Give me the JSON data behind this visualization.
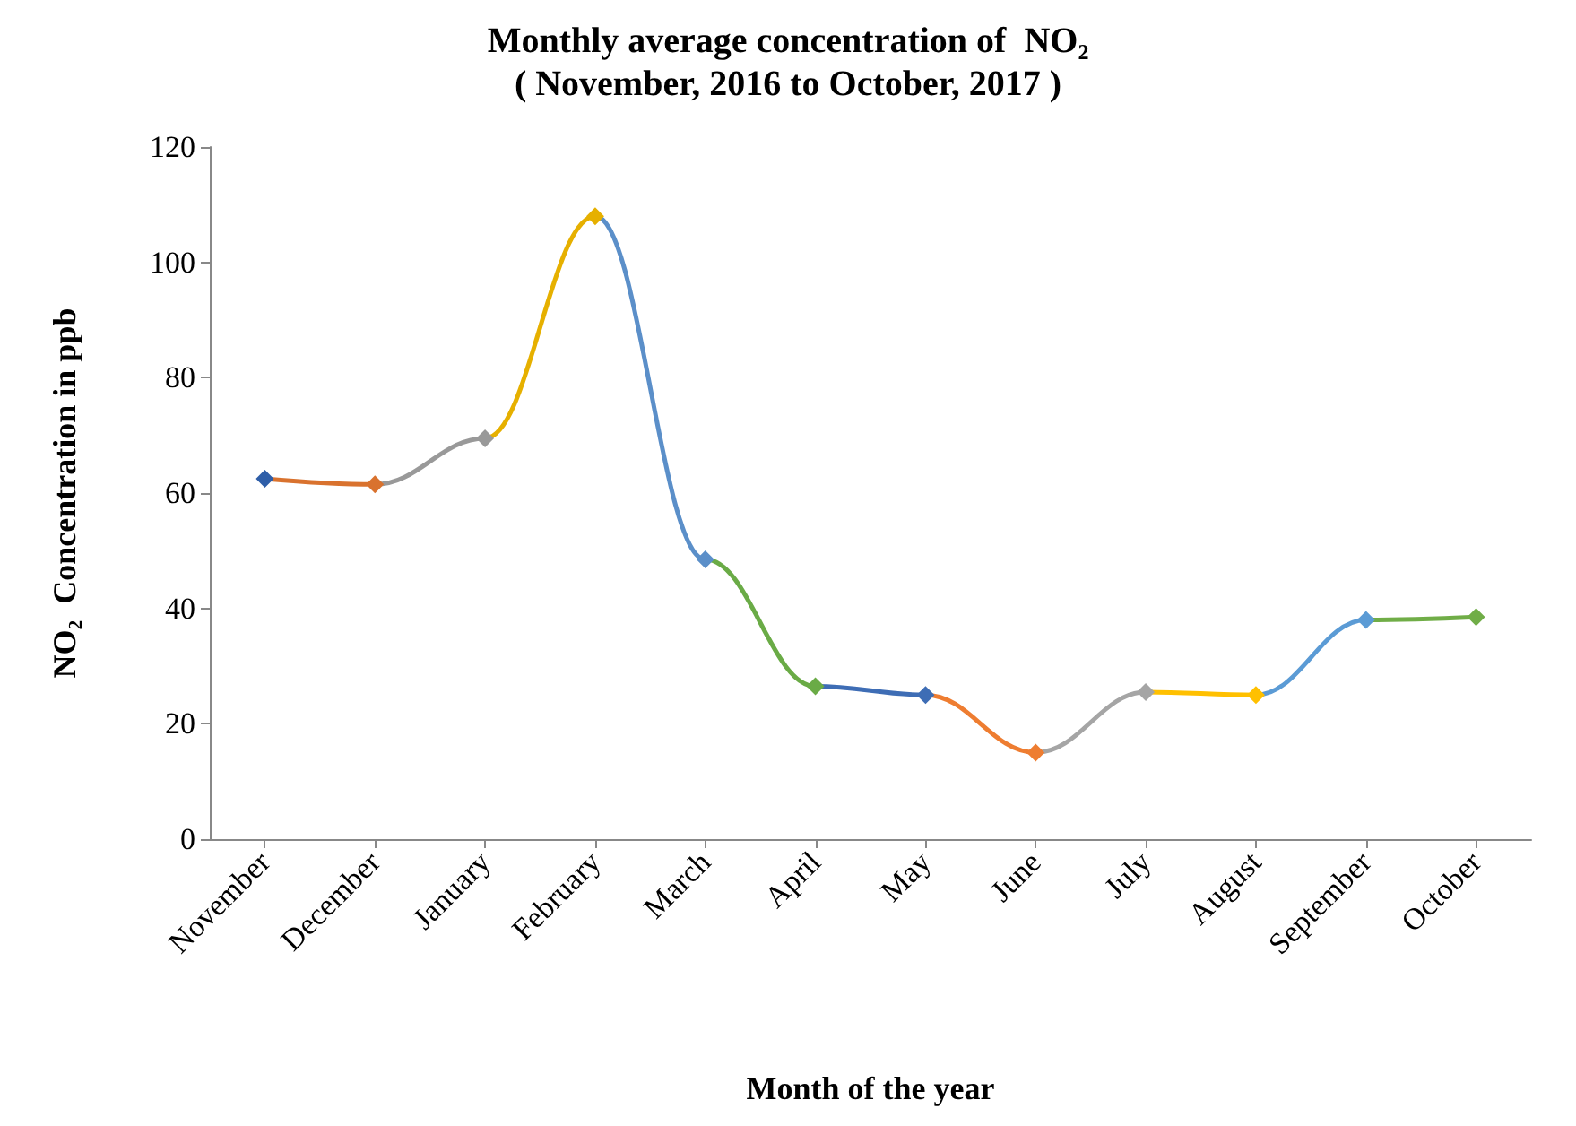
{
  "chart_data": {
    "type": "line",
    "title": "Monthly average concentration of  NO₂",
    "subtitle": "( November, 2016 to October, 2017 )",
    "xlabel": "Month of the year",
    "ylabel": "NO₂  Concentration in ppb",
    "categories": [
      "November",
      "December",
      "January",
      "February",
      "March",
      "April",
      "May",
      "June",
      "July",
      "August",
      "September",
      "October"
    ],
    "values": [
      62.5,
      61.5,
      69.5,
      108,
      48.5,
      26.5,
      25,
      15,
      25.5,
      25,
      38,
      38.5
    ],
    "colors": [
      "#2e5ea8",
      "#d9722e",
      "#999999",
      "#e6b000",
      "#5b8fc9",
      "#6aab46",
      "#3e6db5",
      "#ee7d31",
      "#a5a5a5",
      "#ffc000",
      "#5b9bd5",
      "#70ad47"
    ],
    "ylim": [
      0,
      120
    ],
    "yticks": [
      0,
      20,
      40,
      60,
      80,
      100,
      120
    ],
    "grid": false,
    "marker": "diamond",
    "line_style": "solid"
  }
}
